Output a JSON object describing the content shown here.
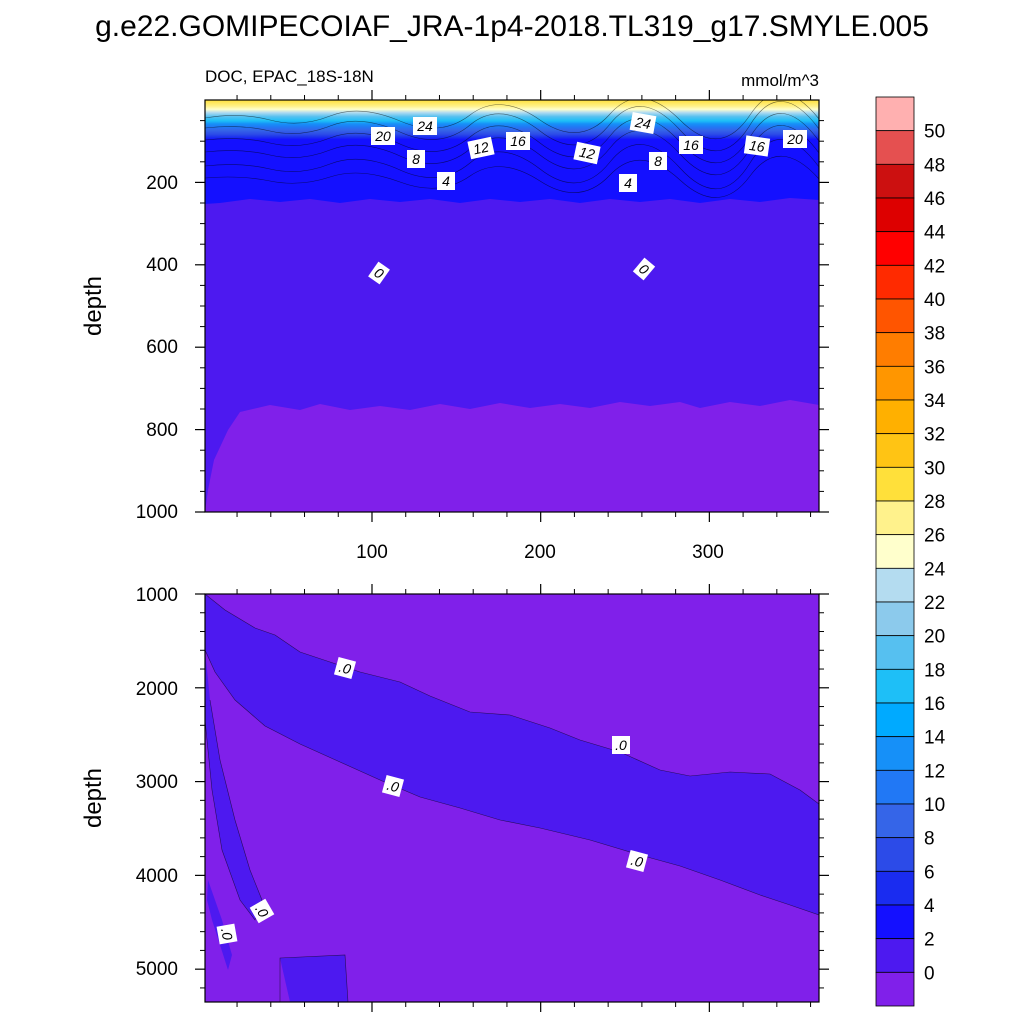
{
  "title": "g.e22.GOMIPECOIAF_JRA-1p4-2018.TL319_g17.SMYLE.005",
  "panel_top": {
    "left_label": "DOC, EPAC_18S-18N",
    "right_label": "mmol/m^3",
    "ylabel": "depth",
    "yticks": [
      "200",
      "400",
      "600",
      "800",
      "1000"
    ],
    "xticks": [
      "100",
      "200",
      "300"
    ]
  },
  "panel_bottom": {
    "ylabel": "depth",
    "yticks": [
      "1000",
      "2000",
      "3000",
      "4000",
      "5000"
    ]
  },
  "colorbar": {
    "labels": [
      "50",
      "48",
      "46",
      "44",
      "42",
      "40",
      "38",
      "36",
      "34",
      "32",
      "30",
      "28",
      "26",
      "24",
      "22",
      "20",
      "18",
      "16",
      "14",
      "12",
      "10",
      "8",
      "6",
      "4",
      "2",
      "0"
    ],
    "colors": [
      "#ffb0b0",
      "#e55050",
      "#cc1010",
      "#dd0000",
      "#ff0000",
      "#ff2a00",
      "#ff5500",
      "#ff7d00",
      "#ff9600",
      "#ffb000",
      "#ffc414",
      "#ffe03a",
      "#fff28c",
      "#ffffcc",
      "#b4dcf0",
      "#8ccaec",
      "#56c0f0",
      "#1ebff7",
      "#00aaff",
      "#1690f8",
      "#2178f5",
      "#3565e8",
      "#2c4be8",
      "#1a2cf0",
      "#1410ff",
      "#4d19f0",
      "#8020ea"
    ]
  },
  "chart_data": [
    {
      "type": "heatmap",
      "title": "g.e22.GOMIPECOIAF_JRA-1p4-2018.TL319_g17.SMYLE.005",
      "subtitle_left": "DOC, EPAC_18S-18N",
      "subtitle_right": "mmol/m^3",
      "xlabel": "",
      "ylabel": "depth",
      "xlim": [
        1,
        365
      ],
      "ylim": [
        1000,
        0
      ],
      "xticks": [
        100,
        200,
        300
      ],
      "yticks": [
        200,
        400,
        600,
        800,
        1000
      ],
      "levels": [
        0,
        2,
        4,
        6,
        8,
        10,
        12,
        14,
        16,
        18,
        20,
        22,
        24,
        26,
        28,
        30,
        32,
        34,
        36,
        38,
        40,
        42,
        44,
        46,
        48,
        50
      ],
      "contour_labels": [
        "20",
        "24",
        "8",
        "12",
        "16",
        "4",
        "12",
        "24",
        "4",
        "8",
        "16",
        "16",
        "20",
        "0",
        "0"
      ],
      "depth_profile": [
        {
          "depth": 10,
          "value": 30
        },
        {
          "depth": 30,
          "value": 26
        },
        {
          "depth": 60,
          "value": 22
        },
        {
          "depth": 90,
          "value": 18
        },
        {
          "depth": 120,
          "value": 14
        },
        {
          "depth": 150,
          "value": 8
        },
        {
          "depth": 180,
          "value": 5
        },
        {
          "depth": 210,
          "value": 3
        },
        {
          "depth": 300,
          "value": 1
        },
        {
          "depth": 500,
          "value": 0
        },
        {
          "depth": 1000,
          "value": 0
        }
      ]
    },
    {
      "type": "heatmap",
      "xlabel": "",
      "ylabel": "depth",
      "xlim": [
        1,
        365
      ],
      "ylim": [
        5350,
        1000
      ],
      "yticks": [
        1000,
        2000,
        3000,
        4000,
        5000
      ],
      "levels": [
        0,
        2,
        4,
        6,
        8,
        10,
        12,
        14,
        16,
        18,
        20,
        22,
        24,
        26,
        28,
        30,
        32,
        34,
        36,
        38,
        40,
        42,
        44,
        46,
        48,
        50
      ],
      "contour_labels": [
        ".0",
        ".0",
        ".0",
        ".0",
        ".0",
        ".0"
      ]
    }
  ]
}
